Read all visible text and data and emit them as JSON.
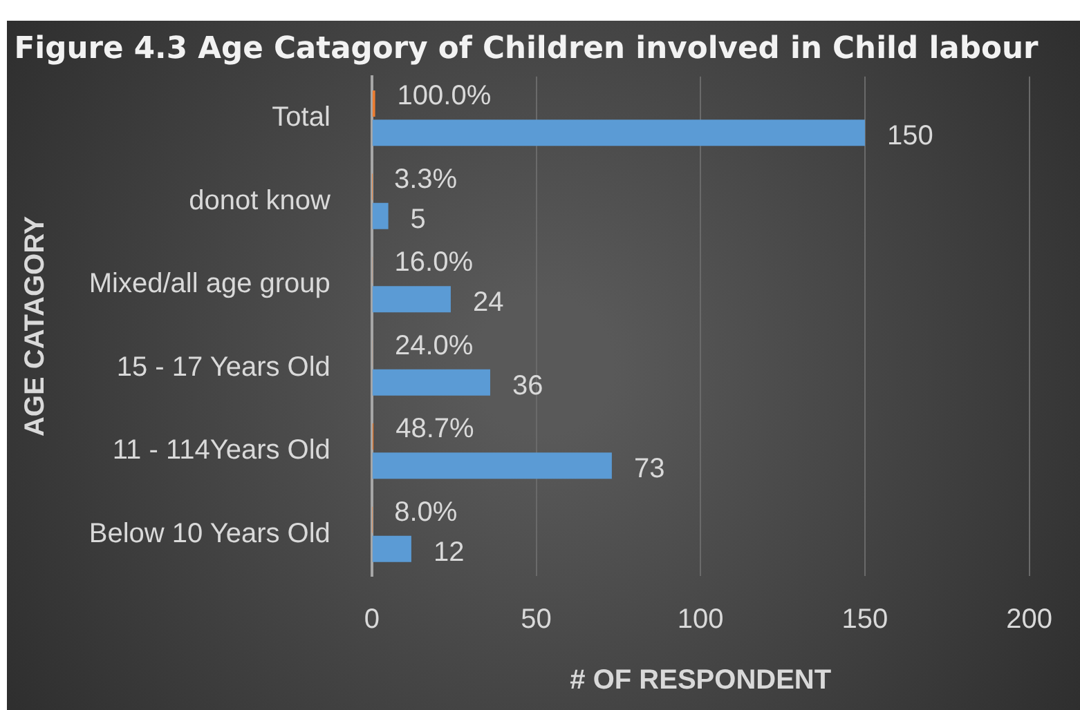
{
  "chart_data": {
    "type": "bar",
    "orientation": "horizontal",
    "title": "Figure 4.3 Age Catagory of Children involved in Child labour",
    "xlabel": "# OF RESPONDENT",
    "ylabel": "AGE CATAGORY",
    "categories": [
      "Total",
      "donot know",
      "Mixed/all age group",
      "15 - 17 Years Old",
      "11 - 114Years Old",
      "Below 10 Years Old"
    ],
    "series": [
      {
        "color": "#ed7d31",
        "values": [
          1,
          0.033,
          0.16,
          0.24,
          0.487,
          0.08
        ],
        "value_labels": [
          "100.0%",
          "3.3%",
          "16.0%",
          "24.0%",
          "48.7%",
          "8.0%"
        ]
      },
      {
        "color": "#5b9bd5",
        "values": [
          150,
          5,
          24,
          36,
          73,
          12
        ],
        "value_labels": [
          "150",
          "5",
          "24",
          "36",
          "73",
          "12"
        ]
      }
    ],
    "xlim": [
      0,
      200
    ],
    "xticks": [
      0,
      50,
      100,
      150,
      200
    ],
    "grid": "x",
    "legend": false
  }
}
